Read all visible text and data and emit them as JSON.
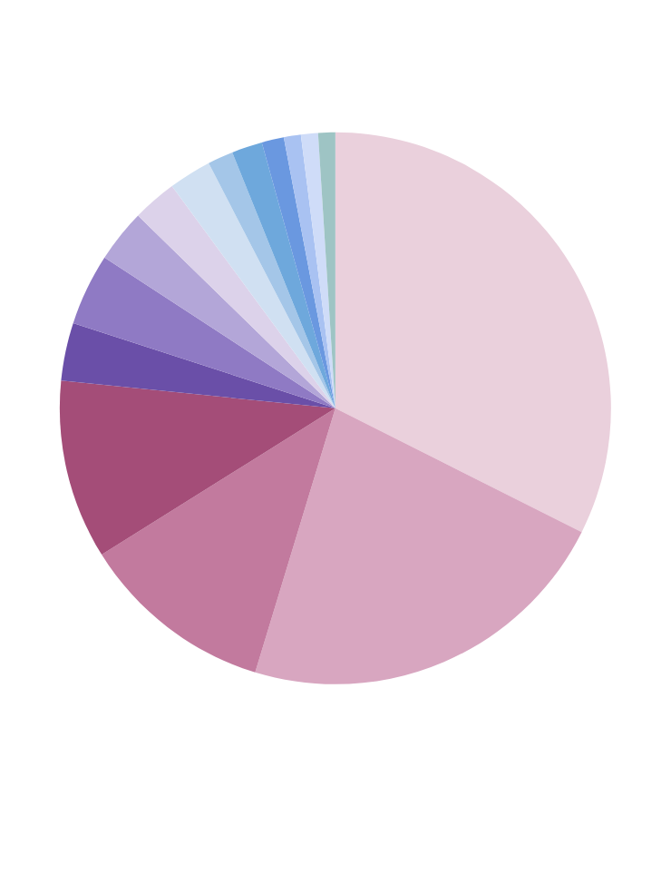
{
  "chart_data": {
    "type": "pie",
    "categories": [
      null,
      null,
      null,
      null,
      null,
      null,
      null,
      null,
      null,
      null,
      null,
      null,
      null,
      null,
      null
    ],
    "values": [
      32.4,
      22.3,
      11.4,
      10.5,
      3.4,
      4.2,
      3.1,
      2.6,
      2.5,
      1.5,
      1.8,
      1.3,
      1.0,
      1.0,
      1.0
    ],
    "colors": [
      "#ead0dc",
      "#d8a6c0",
      "#c27a9e",
      "#a44d78",
      "#6a4fa8",
      "#8f7ac4",
      "#b3a6d8",
      "#dcd2ea",
      "#d0e0f2",
      "#a4c6e8",
      "#6ea8dc",
      "#6a98e0",
      "#a9c2f2",
      "#cfdcf8",
      "#9ec4c4"
    ]
  }
}
